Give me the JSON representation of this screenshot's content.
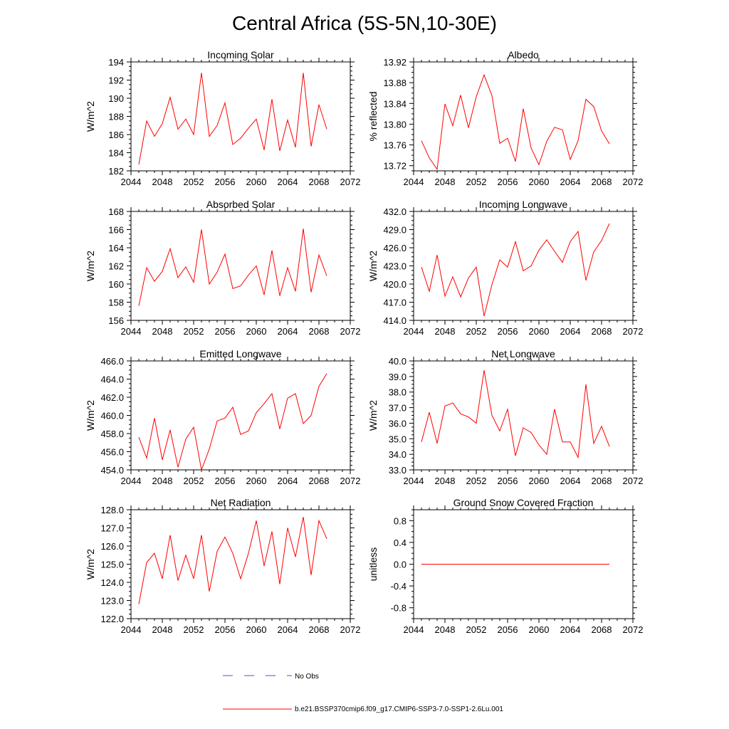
{
  "page_title": "Central Africa (5S-5N,10-30E)",
  "colors": {
    "model": "#ff0000",
    "obs": "#4455cc",
    "axis": "#000000"
  },
  "legend": {
    "obs_label": "No Obs",
    "model_label": "b.e21.BSSP370cmip6.f09_g17.CMIP6-SSP3-7.0-SSP1-2.6Lu.001"
  },
  "chart_data": [
    {
      "type": "line",
      "title": "Incoming Solar",
      "ylabel": "W/m^2",
      "xlim": [
        2044,
        2072
      ],
      "ylim": [
        182,
        194
      ],
      "xticks": [
        "2044",
        "2048",
        "2052",
        "2056",
        "2060",
        "2064",
        "2068",
        "2072"
      ],
      "yticks": [
        "182",
        "184",
        "186",
        "188",
        "190",
        "192",
        "194"
      ],
      "x": [
        2045,
        2046,
        2047,
        2048,
        2049,
        2050,
        2051,
        2052,
        2053,
        2054,
        2055,
        2056,
        2057,
        2058,
        2059,
        2060,
        2061,
        2062,
        2063,
        2064,
        2065,
        2066,
        2067,
        2068,
        2069
      ],
      "series": [
        {
          "values": [
            182.7,
            187.5,
            185.8,
            187.2,
            190.1,
            186.6,
            187.7,
            186.0,
            192.8,
            185.8,
            187.0,
            189.5,
            184.9,
            185.6,
            186.7,
            187.7,
            184.3,
            189.9,
            184.2,
            187.6,
            184.6,
            192.8,
            184.7,
            189.3,
            186.6
          ]
        }
      ]
    },
    {
      "type": "line",
      "title": "Albedo",
      "ylabel": "% reflected",
      "xlim": [
        2044,
        2072
      ],
      "ylim": [
        13.71,
        13.92
      ],
      "xticks": [
        "2044",
        "2048",
        "2052",
        "2056",
        "2060",
        "2064",
        "2068",
        "2072"
      ],
      "yticks": [
        "13.72",
        "13.76",
        "13.80",
        "13.84",
        "13.88",
        "13.92"
      ],
      "x": [
        2045,
        2046,
        2047,
        2048,
        2049,
        2050,
        2051,
        2052,
        2053,
        2054,
        2055,
        2056,
        2057,
        2058,
        2059,
        2060,
        2061,
        2062,
        2063,
        2064,
        2065,
        2066,
        2067,
        2068,
        2069
      ],
      "series": [
        {
          "values": [
            13.768,
            13.735,
            13.713,
            13.839,
            13.797,
            13.856,
            13.793,
            13.853,
            13.895,
            13.855,
            13.763,
            13.773,
            13.728,
            13.83,
            13.754,
            13.722,
            13.767,
            13.794,
            13.789,
            13.732,
            13.768,
            13.848,
            13.834,
            13.787,
            13.762
          ]
        }
      ]
    },
    {
      "type": "line",
      "title": "Absorbed Solar",
      "ylabel": "W/m^2",
      "xlim": [
        2044,
        2072
      ],
      "ylim": [
        156,
        168
      ],
      "xticks": [
        "2044",
        "2048",
        "2052",
        "2056",
        "2060",
        "2064",
        "2068",
        "2072"
      ],
      "yticks": [
        "156",
        "158",
        "160",
        "162",
        "164",
        "166",
        "168"
      ],
      "x": [
        2045,
        2046,
        2047,
        2048,
        2049,
        2050,
        2051,
        2052,
        2053,
        2054,
        2055,
        2056,
        2057,
        2058,
        2059,
        2060,
        2061,
        2062,
        2063,
        2064,
        2065,
        2066,
        2067,
        2068,
        2069
      ],
      "series": [
        {
          "values": [
            157.6,
            161.8,
            160.3,
            161.4,
            163.9,
            160.7,
            161.9,
            160.2,
            166.0,
            160.0,
            161.3,
            163.3,
            159.5,
            159.8,
            161.0,
            162.0,
            158.8,
            163.7,
            158.7,
            161.8,
            159.2,
            166.1,
            159.1,
            163.2,
            160.9
          ]
        }
      ]
    },
    {
      "type": "line",
      "title": "Incoming Longwave",
      "ylabel": "W/m^2",
      "xlim": [
        2044,
        2072
      ],
      "ylim": [
        414,
        432
      ],
      "xticks": [
        "2044",
        "2048",
        "2052",
        "2056",
        "2060",
        "2064",
        "2068",
        "2072"
      ],
      "yticks": [
        "414.0",
        "417.0",
        "420.0",
        "423.0",
        "426.0",
        "429.0",
        "432.0"
      ],
      "x": [
        2045,
        2046,
        2047,
        2048,
        2049,
        2050,
        2051,
        2052,
        2053,
        2054,
        2055,
        2056,
        2057,
        2058,
        2059,
        2060,
        2061,
        2062,
        2063,
        2064,
        2065,
        2066,
        2067,
        2068,
        2069
      ],
      "series": [
        {
          "values": [
            422.8,
            418.8,
            424.8,
            418.0,
            421.2,
            417.9,
            421.0,
            422.8,
            414.7,
            419.9,
            424.0,
            422.8,
            427.0,
            422.2,
            423.0,
            425.6,
            427.3,
            425.4,
            423.6,
            427.0,
            428.7,
            420.6,
            425.3,
            427.2,
            430.0
          ]
        }
      ]
    },
    {
      "type": "line",
      "title": "Emitted Longwave",
      "ylabel": "W/m^2",
      "xlim": [
        2044,
        2072
      ],
      "ylim": [
        454,
        466
      ],
      "xticks": [
        "2044",
        "2048",
        "2052",
        "2056",
        "2060",
        "2064",
        "2068",
        "2072"
      ],
      "yticks": [
        "454.0",
        "456.0",
        "458.0",
        "460.0",
        "462.0",
        "464.0",
        "466.0"
      ],
      "x": [
        2045,
        2046,
        2047,
        2048,
        2049,
        2050,
        2051,
        2052,
        2053,
        2054,
        2055,
        2056,
        2057,
        2058,
        2059,
        2060,
        2061,
        2062,
        2063,
        2064,
        2065,
        2066,
        2067,
        2068,
        2069
      ],
      "series": [
        {
          "values": [
            457.6,
            455.3,
            459.7,
            455.1,
            458.4,
            454.3,
            457.4,
            458.7,
            454.0,
            456.3,
            459.4,
            459.7,
            460.9,
            457.9,
            458.3,
            460.3,
            461.3,
            462.4,
            458.5,
            461.9,
            462.4,
            459.1,
            460.0,
            463.2,
            464.6
          ]
        }
      ]
    },
    {
      "type": "line",
      "title": "Net Longwave",
      "ylabel": "W/m^2",
      "xlim": [
        2044,
        2072
      ],
      "ylim": [
        33,
        40
      ],
      "xticks": [
        "2044",
        "2048",
        "2052",
        "2056",
        "2060",
        "2064",
        "2068",
        "2072"
      ],
      "yticks": [
        "33.0",
        "34.0",
        "35.0",
        "36.0",
        "37.0",
        "38.0",
        "39.0",
        "40.0"
      ],
      "x": [
        2045,
        2046,
        2047,
        2048,
        2049,
        2050,
        2051,
        2052,
        2053,
        2054,
        2055,
        2056,
        2057,
        2058,
        2059,
        2060,
        2061,
        2062,
        2063,
        2064,
        2065,
        2066,
        2067,
        2068,
        2069
      ],
      "series": [
        {
          "values": [
            34.8,
            36.7,
            34.7,
            37.1,
            37.3,
            36.6,
            36.4,
            36.0,
            39.4,
            36.5,
            35.5,
            36.9,
            33.9,
            35.7,
            35.4,
            34.6,
            34.0,
            36.9,
            34.8,
            34.8,
            33.8,
            38.5,
            34.7,
            35.8,
            34.5
          ]
        }
      ]
    },
    {
      "type": "line",
      "title": "Net Radiation",
      "ylabel": "W/m^2",
      "xlim": [
        2044,
        2072
      ],
      "ylim": [
        122,
        128
      ],
      "xticks": [
        "2044",
        "2048",
        "2052",
        "2056",
        "2060",
        "2064",
        "2068",
        "2072"
      ],
      "yticks": [
        "122.0",
        "123.0",
        "124.0",
        "125.0",
        "126.0",
        "127.0",
        "128.0"
      ],
      "x": [
        2045,
        2046,
        2047,
        2048,
        2049,
        2050,
        2051,
        2052,
        2053,
        2054,
        2055,
        2056,
        2057,
        2058,
        2059,
        2060,
        2061,
        2062,
        2063,
        2064,
        2065,
        2066,
        2067,
        2068,
        2069
      ],
      "series": [
        {
          "values": [
            122.8,
            125.1,
            125.6,
            124.2,
            126.6,
            124.1,
            125.5,
            124.2,
            126.6,
            123.5,
            125.7,
            126.5,
            125.6,
            124.2,
            125.6,
            127.4,
            124.9,
            126.8,
            123.9,
            127.0,
            125.4,
            127.6,
            124.4,
            127.4,
            126.4
          ]
        }
      ]
    },
    {
      "type": "line",
      "title": "Ground Snow Covered Fraction",
      "ylabel": "unitless",
      "xlim": [
        2044,
        2072
      ],
      "ylim": [
        -1.0,
        1.0
      ],
      "xticks": [
        "2044",
        "2048",
        "2052",
        "2056",
        "2060",
        "2064",
        "2068",
        "2072"
      ],
      "yticks": [
        "-0.8",
        "-0.4",
        "0.0",
        "0.4",
        "0.8"
      ],
      "x": [
        2045,
        2046,
        2047,
        2048,
        2049,
        2050,
        2051,
        2052,
        2053,
        2054,
        2055,
        2056,
        2057,
        2058,
        2059,
        2060,
        2061,
        2062,
        2063,
        2064,
        2065,
        2066,
        2067,
        2068,
        2069
      ],
      "series": [
        {
          "values": [
            0,
            0,
            0,
            0,
            0,
            0,
            0,
            0,
            0,
            0,
            0,
            0,
            0,
            0,
            0,
            0,
            0,
            0,
            0,
            0,
            0,
            0,
            0,
            0,
            0
          ]
        }
      ]
    }
  ]
}
